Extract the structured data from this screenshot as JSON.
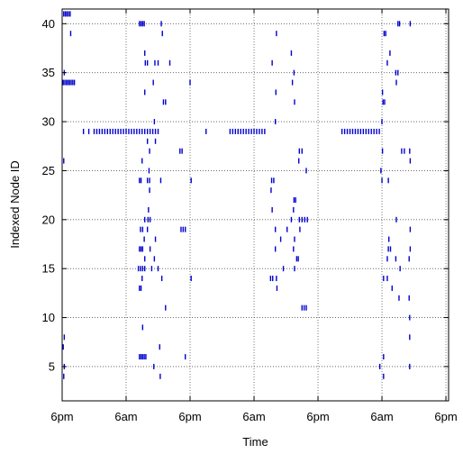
{
  "chart_data": {
    "type": "scatter",
    "xlabel": "Time",
    "ylabel": "Indexed Node ID",
    "x_unit": "hours",
    "xlim": [
      0,
      72.5
    ],
    "ylim": [
      1.5,
      41.5
    ],
    "x_ticks": [
      {
        "value": 0,
        "label": "6pm"
      },
      {
        "value": 12,
        "label": "6am"
      },
      {
        "value": 24,
        "label": "6pm"
      },
      {
        "value": 36,
        "label": "6am"
      },
      {
        "value": 48,
        "label": "6pm"
      },
      {
        "value": 60,
        "label": "6am"
      },
      {
        "value": 72,
        "label": "6pm"
      }
    ],
    "y_ticks": [
      5,
      10,
      15,
      20,
      25,
      30,
      35,
      40
    ],
    "grid": true,
    "marker_color": "#0000cc",
    "series": [
      {
        "points": [
          [
            0.3,
            41
          ],
          [
            0.6,
            41
          ],
          [
            0.9,
            41
          ],
          [
            1.2,
            41
          ],
          [
            1.5,
            41
          ],
          [
            14.5,
            40
          ],
          [
            14.8,
            40
          ],
          [
            15.1,
            40
          ],
          [
            15.4,
            40
          ],
          [
            18.6,
            40
          ],
          [
            63.0,
            40
          ],
          [
            63.3,
            40
          ],
          [
            65.3,
            40
          ],
          [
            1.6,
            39
          ],
          [
            18.8,
            39
          ],
          [
            40.2,
            39
          ],
          [
            60.4,
            39
          ],
          [
            60.7,
            39
          ],
          [
            15.5,
            37
          ],
          [
            43.0,
            37
          ],
          [
            61.5,
            37
          ],
          [
            15.6,
            36
          ],
          [
            16.0,
            36
          ],
          [
            17.4,
            36
          ],
          [
            18.0,
            36
          ],
          [
            20.2,
            36
          ],
          [
            39.4,
            36
          ],
          [
            61.0,
            36
          ],
          [
            0.4,
            35
          ],
          [
            43.5,
            35
          ],
          [
            62.6,
            35
          ],
          [
            63.0,
            35
          ],
          [
            0.2,
            34
          ],
          [
            0.5,
            34
          ],
          [
            0.8,
            34
          ],
          [
            1.1,
            34
          ],
          [
            1.4,
            34
          ],
          [
            1.7,
            34
          ],
          [
            2.0,
            34
          ],
          [
            2.3,
            34
          ],
          [
            17.1,
            34
          ],
          [
            24.0,
            34
          ],
          [
            43.2,
            34
          ],
          [
            62.7,
            34
          ],
          [
            15.5,
            33
          ],
          [
            40.1,
            33
          ],
          [
            60.1,
            33
          ],
          [
            19.0,
            32
          ],
          [
            19.4,
            32
          ],
          [
            43.6,
            32
          ],
          [
            60.2,
            32
          ],
          [
            60.5,
            32
          ],
          [
            17.3,
            30
          ],
          [
            40.0,
            30
          ],
          [
            60.0,
            30
          ],
          [
            4.0,
            29
          ],
          [
            5.0,
            29
          ],
          [
            6.0,
            29
          ],
          [
            6.5,
            29
          ],
          [
            7.0,
            29
          ],
          [
            7.5,
            29
          ],
          [
            8.0,
            29
          ],
          [
            8.5,
            29
          ],
          [
            9.0,
            29
          ],
          [
            9.5,
            29
          ],
          [
            10.0,
            29
          ],
          [
            10.5,
            29
          ],
          [
            11.0,
            29
          ],
          [
            11.5,
            29
          ],
          [
            12.0,
            29
          ],
          [
            12.5,
            29
          ],
          [
            13.0,
            29
          ],
          [
            13.5,
            29
          ],
          [
            14.0,
            29
          ],
          [
            14.5,
            29
          ],
          [
            15.0,
            29
          ],
          [
            15.5,
            29
          ],
          [
            16.0,
            29
          ],
          [
            16.5,
            29
          ],
          [
            17.0,
            29
          ],
          [
            17.5,
            29
          ],
          [
            18.0,
            29
          ],
          [
            27.0,
            29
          ],
          [
            31.5,
            29
          ],
          [
            32.0,
            29
          ],
          [
            32.5,
            29
          ],
          [
            33.0,
            29
          ],
          [
            33.5,
            29
          ],
          [
            34.0,
            29
          ],
          [
            34.5,
            29
          ],
          [
            35.0,
            29
          ],
          [
            35.5,
            29
          ],
          [
            36.0,
            29
          ],
          [
            36.5,
            29
          ],
          [
            37.0,
            29
          ],
          [
            37.5,
            29
          ],
          [
            38.0,
            29
          ],
          [
            52.5,
            29
          ],
          [
            53.0,
            29
          ],
          [
            53.5,
            29
          ],
          [
            54.0,
            29
          ],
          [
            54.5,
            29
          ],
          [
            55.0,
            29
          ],
          [
            55.5,
            29
          ],
          [
            56.0,
            29
          ],
          [
            56.5,
            29
          ],
          [
            57.0,
            29
          ],
          [
            57.5,
            29
          ],
          [
            58.0,
            29
          ],
          [
            58.5,
            29
          ],
          [
            59.0,
            29
          ],
          [
            59.5,
            29
          ],
          [
            16.0,
            28
          ],
          [
            17.5,
            28
          ],
          [
            16.4,
            27
          ],
          [
            22.1,
            27
          ],
          [
            22.5,
            27
          ],
          [
            44.5,
            27
          ],
          [
            45.0,
            27
          ],
          [
            60.1,
            27
          ],
          [
            63.7,
            27
          ],
          [
            64.2,
            27
          ],
          [
            65.2,
            27
          ],
          [
            0.3,
            26
          ],
          [
            15.0,
            26
          ],
          [
            44.4,
            26
          ],
          [
            65.3,
            26
          ],
          [
            16.3,
            25
          ],
          [
            45.8,
            25
          ],
          [
            59.8,
            25
          ],
          [
            14.5,
            24
          ],
          [
            14.8,
            24
          ],
          [
            16.0,
            24
          ],
          [
            16.4,
            24
          ],
          [
            18.5,
            24
          ],
          [
            24.2,
            24
          ],
          [
            39.3,
            24
          ],
          [
            39.7,
            24
          ],
          [
            60.0,
            24
          ],
          [
            61.2,
            24
          ],
          [
            16.4,
            23
          ],
          [
            39.2,
            23
          ],
          [
            43.5,
            22
          ],
          [
            43.8,
            22
          ],
          [
            16.2,
            21
          ],
          [
            39.4,
            21
          ],
          [
            43.4,
            21
          ],
          [
            15.5,
            20
          ],
          [
            16.1,
            20
          ],
          [
            16.5,
            20
          ],
          [
            43.0,
            20
          ],
          [
            44.5,
            20
          ],
          [
            45.0,
            20
          ],
          [
            45.5,
            20
          ],
          [
            46.0,
            20
          ],
          [
            62.7,
            20
          ],
          [
            14.7,
            19
          ],
          [
            15.1,
            19
          ],
          [
            16.0,
            19
          ],
          [
            22.3,
            19
          ],
          [
            22.7,
            19
          ],
          [
            23.1,
            19
          ],
          [
            40.0,
            19
          ],
          [
            42.2,
            19
          ],
          [
            44.6,
            19
          ],
          [
            65.3,
            19
          ],
          [
            15.4,
            18
          ],
          [
            17.5,
            18
          ],
          [
            41.0,
            18
          ],
          [
            43.6,
            18
          ],
          [
            61.3,
            18
          ],
          [
            14.5,
            17
          ],
          [
            14.8,
            17
          ],
          [
            15.1,
            17
          ],
          [
            16.5,
            17
          ],
          [
            40.0,
            17
          ],
          [
            43.4,
            17
          ],
          [
            61.2,
            17
          ],
          [
            61.6,
            17
          ],
          [
            65.3,
            17
          ],
          [
            15.5,
            16
          ],
          [
            17.3,
            16
          ],
          [
            44.0,
            16
          ],
          [
            44.3,
            16
          ],
          [
            61.0,
            16
          ],
          [
            62.6,
            16
          ],
          [
            65.1,
            16
          ],
          [
            14.3,
            15
          ],
          [
            14.7,
            15
          ],
          [
            15.1,
            15
          ],
          [
            15.5,
            15
          ],
          [
            16.8,
            15
          ],
          [
            18.0,
            15
          ],
          [
            41.5,
            15
          ],
          [
            43.6,
            15
          ],
          [
            63.4,
            15
          ],
          [
            15.0,
            14
          ],
          [
            18.7,
            14
          ],
          [
            24.2,
            14
          ],
          [
            39.1,
            14
          ],
          [
            39.5,
            14
          ],
          [
            40.2,
            14
          ],
          [
            60.3,
            14
          ],
          [
            61.0,
            14
          ],
          [
            14.5,
            13
          ],
          [
            14.8,
            13
          ],
          [
            40.3,
            13
          ],
          [
            61.9,
            13
          ],
          [
            63.2,
            12
          ],
          [
            65.1,
            12
          ],
          [
            19.4,
            11
          ],
          [
            45.0,
            11
          ],
          [
            45.4,
            11
          ],
          [
            45.8,
            11
          ],
          [
            65.2,
            10
          ],
          [
            15.1,
            9
          ],
          [
            0.4,
            8
          ],
          [
            65.2,
            8
          ],
          [
            0.2,
            7
          ],
          [
            18.3,
            7
          ],
          [
            14.5,
            6
          ],
          [
            14.8,
            6
          ],
          [
            15.1,
            6
          ],
          [
            15.4,
            6
          ],
          [
            15.7,
            6
          ],
          [
            23.1,
            6
          ],
          [
            60.3,
            6
          ],
          [
            0.4,
            5
          ],
          [
            17.2,
            5
          ],
          [
            59.6,
            5
          ],
          [
            65.2,
            5
          ],
          [
            0.3,
            4
          ],
          [
            18.4,
            4
          ],
          [
            60.3,
            4
          ]
        ]
      }
    ]
  }
}
